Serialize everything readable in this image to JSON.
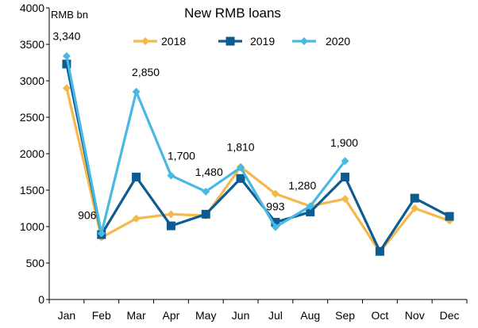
{
  "chart_data": {
    "type": "line",
    "title": "New RMB loans",
    "unit_label": "RMB bn",
    "xlabel": "",
    "ylabel": "",
    "categories": [
      "Jan",
      "Feb",
      "Mar",
      "Apr",
      "May",
      "Jun",
      "Jul",
      "Aug",
      "Sep",
      "Oct",
      "Nov",
      "Dec"
    ],
    "ylim": [
      0,
      4000
    ],
    "yticks": [
      "0",
      "500",
      "1000",
      "1500",
      "2000",
      "2500",
      "3000",
      "3500",
      "4000"
    ],
    "grid": false,
    "legend_position": "top",
    "series": [
      {
        "name": "2018",
        "color": "#f5b84a",
        "marker": "diamond",
        "values": [
          2900,
          850,
          1110,
          1170,
          1150,
          1820,
          1450,
          1280,
          1380,
          650,
          1250,
          1080
        ]
      },
      {
        "name": "2019",
        "color": "#0d5b91",
        "marker": "square",
        "values": [
          3230,
          890,
          1680,
          1010,
          1170,
          1660,
          1060,
          1200,
          1680,
          660,
          1390,
          1140
        ]
      },
      {
        "name": "2020",
        "color": "#49b8e3",
        "marker": "diamond",
        "values": [
          3340,
          906,
          2850,
          1700,
          1480,
          1810,
          993,
          1280,
          1900,
          null,
          null,
          null
        ]
      }
    ],
    "data_labels": [
      {
        "month": "Jan",
        "text": "3,340"
      },
      {
        "month": "Feb",
        "text": "906"
      },
      {
        "month": "Mar",
        "text": "2,850"
      },
      {
        "month": "Apr",
        "text": "1,700"
      },
      {
        "month": "May",
        "text": "1,480"
      },
      {
        "month": "Jun",
        "text": "1,810"
      },
      {
        "month": "Jul",
        "text": "993"
      },
      {
        "month": "Aug",
        "text": "1,280"
      },
      {
        "month": "Sep",
        "text": "1,900"
      }
    ]
  }
}
